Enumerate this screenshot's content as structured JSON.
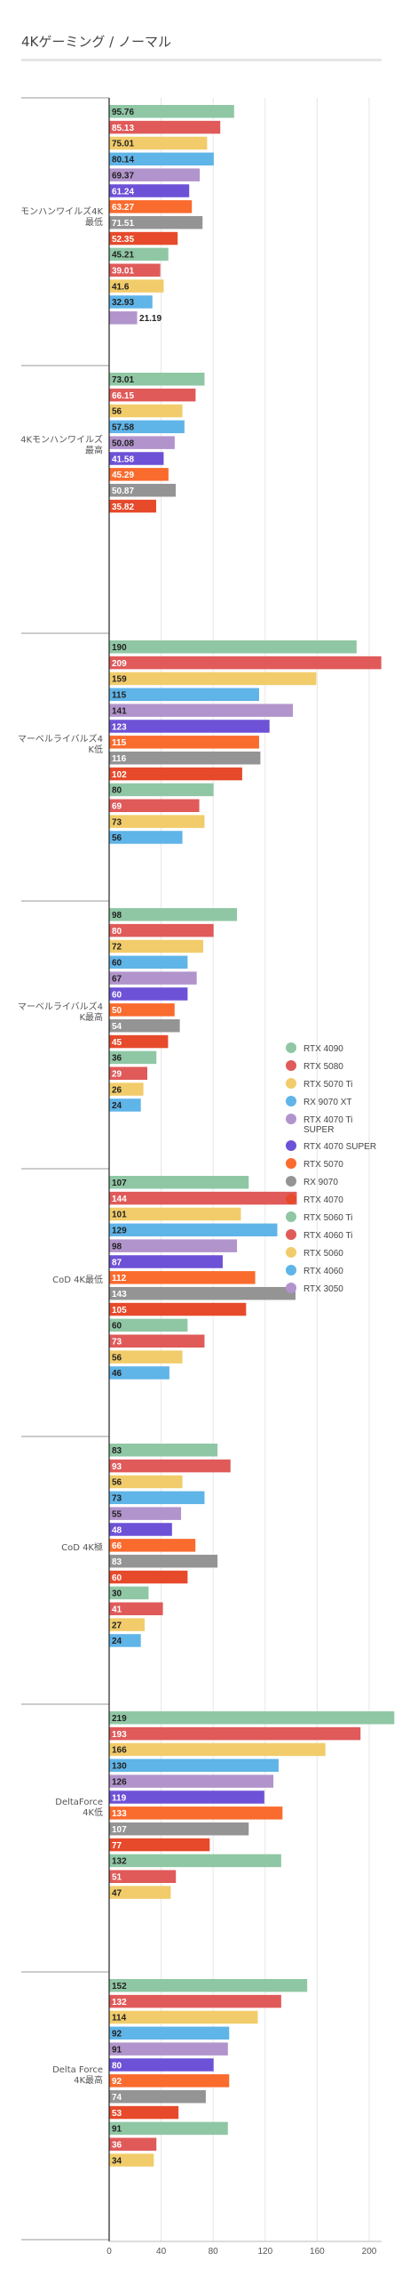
{
  "chart_data": {
    "type": "bar",
    "orientation": "horizontal",
    "title": "4Kゲーミング / ノーマル",
    "xlabel": "",
    "ylabel": "",
    "xlim": [
      0,
      240
    ],
    "xticks": [
      0,
      40,
      80,
      120,
      160,
      200
    ],
    "grid": true,
    "legend_position": "right",
    "groups": [
      {
        "label": "モンハンワイルズ4K最低",
        "values": [
          95.76,
          85.13,
          75.01,
          80.14,
          69.37,
          61.24,
          63.27,
          71.51,
          52.35,
          45.21,
          39.01,
          41.6,
          32.93,
          21.19
        ]
      },
      {
        "label": "4Kモンハンワイルズ最高",
        "values": [
          73.01,
          66.15,
          56,
          57.58,
          50.08,
          41.58,
          45.29,
          50.87,
          35.82
        ]
      },
      {
        "label": "マーベルライバルズ4K低",
        "values": [
          190,
          209,
          159,
          115,
          141,
          123,
          115,
          116,
          102,
          80,
          69,
          73,
          56
        ]
      },
      {
        "label": "マーベルライバルズ4K最高",
        "values": [
          98,
          80,
          72,
          60,
          67,
          60,
          50,
          54,
          45,
          36,
          29,
          26,
          24
        ]
      },
      {
        "label": "CoD 4K最低",
        "values": [
          107,
          144,
          101,
          129,
          98,
          87,
          112,
          143,
          105,
          60,
          73,
          56,
          46
        ]
      },
      {
        "label": "CoD 4K極",
        "values": [
          83,
          93,
          56,
          73,
          55,
          48,
          66,
          83,
          60,
          30,
          41,
          27,
          24
        ]
      },
      {
        "label": "DeltaForce 4K低",
        "values": [
          219,
          193,
          166,
          130,
          126,
          119,
          133,
          107,
          77,
          132,
          51,
          47
        ]
      },
      {
        "label": "Delta Force 4K最高",
        "values": [
          152,
          132,
          114,
          92,
          91,
          80,
          92,
          74,
          53,
          91,
          36,
          34
        ]
      }
    ],
    "series": [
      {
        "name": "RTX 4090",
        "color": "#8fc7a4"
      },
      {
        "name": "RTX 5080",
        "color": "#e05a5a"
      },
      {
        "name": "RTX 5070 Ti",
        "color": "#f2cc6b"
      },
      {
        "name": "RX 9070 XT",
        "color": "#5fb4e8"
      },
      {
        "name": "RTX 4070 Ti SUPER",
        "color": "#b294cc"
      },
      {
        "name": "RTX 4070 SUPER",
        "color": "#6d51d6"
      },
      {
        "name": "RTX 5070",
        "color": "#fa6b2e"
      },
      {
        "name": "RX 9070",
        "color": "#949494"
      },
      {
        "name": "RTX 4070",
        "color": "#e64a2b"
      },
      {
        "name": "RTX 5060 Ti",
        "color": "#8fc7a4"
      },
      {
        "name": "RTX 4060 Ti",
        "color": "#e05a5a"
      },
      {
        "name": "RTX 5060",
        "color": "#f2cc6b"
      },
      {
        "name": "RTX 4060",
        "color": "#5fb4e8"
      },
      {
        "name": "RTX 3050",
        "color": "#b294cc"
      }
    ]
  }
}
